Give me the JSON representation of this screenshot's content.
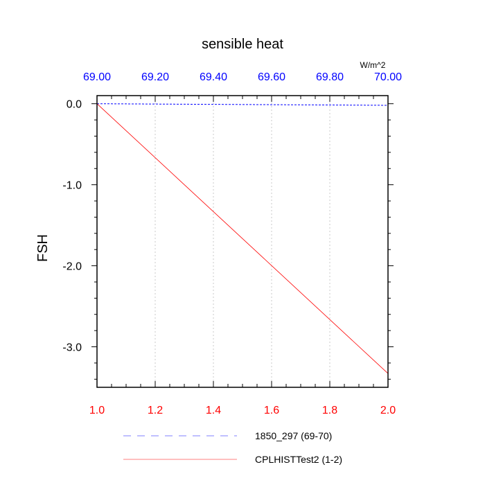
{
  "chart_data": {
    "type": "line",
    "title": "sensible heat",
    "ylabel": "FSH",
    "units": "W/m^2",
    "ylim": [
      -3.5,
      0.1
    ],
    "y_ticks": [
      {
        "value": 0.0,
        "label": "0.0"
      },
      {
        "value": -1.0,
        "label": "-1.0"
      },
      {
        "value": -2.0,
        "label": "-2.0"
      },
      {
        "value": -3.0,
        "label": "-3.0"
      }
    ],
    "x_bottom": {
      "range": [
        1.0,
        2.0
      ],
      "color": "#ff0000",
      "ticks": [
        {
          "value": 1.0,
          "label": "1.0"
        },
        {
          "value": 1.2,
          "label": "1.2"
        },
        {
          "value": 1.4,
          "label": "1.4"
        },
        {
          "value": 1.6,
          "label": "1.6"
        },
        {
          "value": 1.8,
          "label": "1.8"
        },
        {
          "value": 2.0,
          "label": "2.0"
        }
      ]
    },
    "x_top": {
      "range": [
        69.0,
        70.0
      ],
      "color": "#0000ff",
      "ticks": [
        {
          "value": 69.0,
          "label": "69.00"
        },
        {
          "value": 69.2,
          "label": "69.20"
        },
        {
          "value": 69.4,
          "label": "69.40"
        },
        {
          "value": 69.6,
          "label": "69.60"
        },
        {
          "value": 69.8,
          "label": "69.80"
        },
        {
          "value": 70.0,
          "label": "70.00"
        }
      ]
    },
    "grid": "vertical-dotted",
    "legend_position": "bottom",
    "series": [
      {
        "name": "1850_297 (69-70)",
        "axis": "top",
        "color": "#0000ff",
        "dash": "dashed",
        "x": [
          69.0,
          70.0
        ],
        "y": [
          0.0,
          -0.02
        ]
      },
      {
        "name": "CPLHISTTest2 (1-2)",
        "axis": "bottom",
        "color": "#ff0000",
        "dash": "solid",
        "x": [
          1.0,
          2.0
        ],
        "y": [
          0.0,
          -3.33
        ]
      }
    ]
  }
}
